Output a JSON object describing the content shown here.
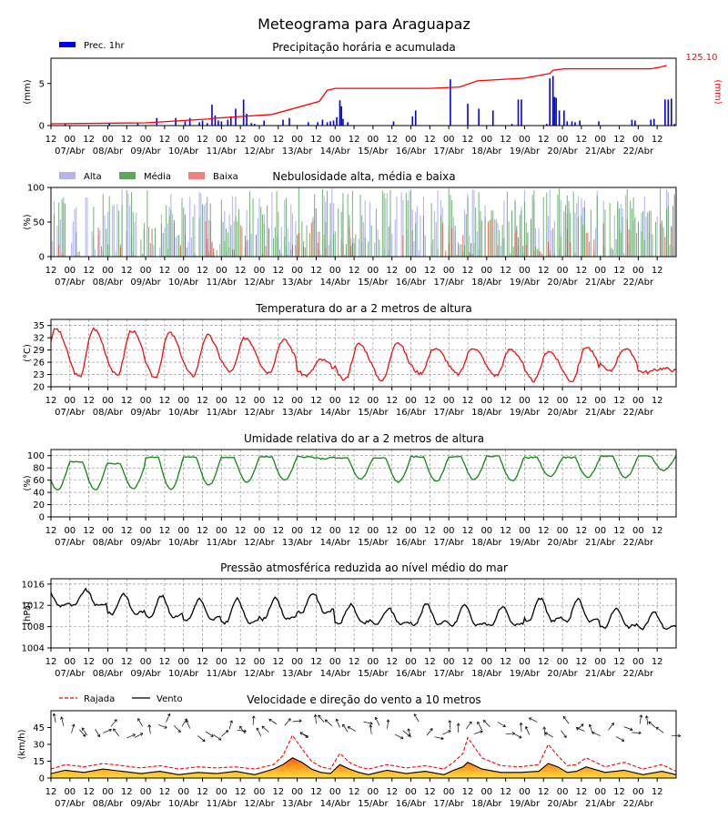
{
  "title": "Meteograma para Araguapaz",
  "x_axis": {
    "hour_labels": [
      "12",
      "00",
      "12",
      "00",
      "12",
      "00",
      "12",
      "00",
      "12",
      "00",
      "12",
      "00",
      "12",
      "00",
      "12",
      "00",
      "12",
      "00",
      "12",
      "00",
      "12",
      "00",
      "12",
      "00",
      "12",
      "00",
      "12",
      "00",
      "12",
      "00",
      "12",
      "00",
      "12"
    ],
    "date_labels": [
      "07/Abr",
      "08/Abr",
      "09/Abr",
      "10/Abr",
      "11/Abr",
      "12/Abr",
      "13/Abr",
      "14/Abr",
      "15/Abr",
      "16/Abr",
      "17/Abr",
      "18/Abr",
      "19/Abr",
      "20/Abr",
      "21/Abr",
      "22/Abr"
    ]
  },
  "colors": {
    "precip_bar": "#0000ee",
    "precip_acc": "#ff0000",
    "cloud_high": "#b4b4f4",
    "cloud_mid": "#5aa85a",
    "cloud_low": "#e03c28",
    "temp": "#ee1111",
    "humidity": "#118811",
    "pressure": "#000000",
    "gust": "#ff0000",
    "wind": "#000000"
  },
  "chart_data": [
    {
      "type": "bar",
      "title": "Precipitação horária e acumulada",
      "ylabel": "(mm)",
      "ylabel_right": "(mm)",
      "yticks": [
        "0",
        "5"
      ],
      "ylim": [
        0,
        8
      ],
      "accum_final_label": "125.10",
      "series": [
        {
          "name": "Prec. 1hr",
          "x_hours": [
            9,
            37,
            55,
            67,
            79,
            85,
            88,
            94,
            96,
            99,
            102,
            104,
            106,
            108,
            112,
            114,
            117,
            122,
            124,
            127,
            129,
            135,
            147,
            151,
            163,
            169,
            172,
            175,
            177,
            179,
            181,
            183,
            184,
            185,
            188,
            217,
            229,
            231,
            253,
            264,
            271,
            280,
            292,
            296,
            298,
            314,
            316,
            318,
            319,
            320,
            322,
            325,
            327,
            330,
            332,
            335,
            347,
            368,
            370,
            380,
            382,
            389,
            391,
            393,
            395
          ],
          "values": [
            0.2,
            0.3,
            0.3,
            0.9,
            0.9,
            0.5,
            0.9,
            0.4,
            0.6,
            0.3,
            2.5,
            1.2,
            0.6,
            0.5,
            0.7,
            1.1,
            2.0,
            3.1,
            1.4,
            0.3,
            0.2,
            0.6,
            0.7,
            0.9,
            0.4,
            0.4,
            0.7,
            0.4,
            0.5,
            0.6,
            1.0,
            3.0,
            2.3,
            0.8,
            0.4,
            0.5,
            1.1,
            1.8,
            5.5,
            2.6,
            2.0,
            1.8,
            0.2,
            3.1,
            3.1,
            0.2,
            5.6,
            5.9,
            3.4,
            3.3,
            1.8,
            1.8,
            0.5,
            0.5,
            0.4,
            0.6,
            0.5,
            0.7,
            0.6,
            0.7,
            0.8,
            3.1,
            3.1,
            3.2,
            0.2
          ]
        },
        {
          "name": "Precipitação acumulada",
          "x_hours": [
            0,
            60,
            99,
            104,
            140,
            170,
            175,
            180,
            240,
            259,
            270,
            290,
            300,
            316,
            318,
            325,
            340,
            360,
            380,
            385,
            390
          ],
          "values": [
            0,
            2,
            10,
            12,
            20,
            48,
            72,
            76,
            76,
            79,
            92,
            96,
            98,
            108,
            115,
            118,
            118,
            118,
            118,
            121,
            125.1
          ]
        }
      ]
    },
    {
      "type": "bar",
      "title": "Nebulosidade alta, média e baixa",
      "ylabel": "(%)",
      "yticks": [
        "0",
        "50",
        "100"
      ],
      "ylim": [
        0,
        100
      ],
      "series": [
        {
          "name": "Alta",
          "values_desc": "0–100% variable"
        },
        {
          "name": "Média",
          "values_desc": "0–100% variable"
        },
        {
          "name": "Baixa",
          "values_desc": "0–60% variable"
        }
      ]
    },
    {
      "type": "line",
      "title": "Temperatura do ar a 2 metros de altura",
      "ylabel": "(°C)",
      "yticks": [
        "20",
        "23",
        "26",
        "29",
        "32",
        "35"
      ],
      "ylim": [
        20,
        36.5
      ],
      "daily_min": [
        22.4,
        22.8,
        22.3,
        22.7,
        23.7,
        23.5,
        22.8,
        21.7,
        21.6,
        23.3,
        23.1,
        22.8,
        21.5,
        21.4,
        23.8,
        23.6
      ],
      "daily_max": [
        34.2,
        33.8,
        33.2,
        32.6,
        32.0,
        31.5,
        26.6,
        30.5,
        31.0,
        29.5,
        29.6,
        29.2,
        28.8,
        29.8,
        29.3,
        24.5
      ]
    },
    {
      "type": "line",
      "title": "Umidade relativa do ar a 2 metros de altura",
      "ylabel": "(%)",
      "yticks": [
        "0",
        "20",
        "40",
        "60",
        "80",
        "100"
      ],
      "ylim": [
        0,
        110
      ],
      "daily_min": [
        44,
        46,
        45,
        52,
        57,
        60,
        95,
        62,
        57,
        58,
        61,
        59,
        66,
        65,
        64,
        76
      ],
      "daily_max": [
        90,
        87,
        97,
        98,
        97,
        98,
        98,
        96,
        96,
        98,
        98,
        99,
        97,
        97,
        99,
        99
      ]
    },
    {
      "type": "line",
      "title": "Pressão atmosférica reduzida ao nível médio do mar",
      "ylabel": "(hPa)",
      "yticks": [
        "1004",
        "1008",
        "1012",
        "1016"
      ],
      "ylim": [
        1004,
        1017
      ],
      "daily_high": [
        1014.9,
        1014.2,
        1013.8,
        1013.2,
        1013.2,
        1013.3,
        1014.3,
        1012.1,
        1011.4,
        1012.3,
        1012.1,
        1011.6,
        1013.3,
        1013.1,
        1011.4,
        1010.7
      ],
      "daily_low": [
        1010.9,
        1009.1,
        1008.5,
        1007.9,
        1007.2,
        1008.1,
        1009.4,
        1007.4,
        1007.5,
        1007.1,
        1006.9,
        1007.1,
        1007.7,
        1007.5,
        1006.7,
        1006.6
      ]
    },
    {
      "type": "line",
      "title": "Velocidade e direção do vento a 10 metros",
      "ylabel": "(km/h)",
      "yticks": [
        "0",
        "15",
        "30",
        "45"
      ],
      "ylim": [
        0,
        60
      ],
      "series": [
        {
          "name": "Rajada",
          "x_hours": [
            0,
            9,
            21,
            33,
            45,
            57,
            69,
            81,
            93,
            105,
            117,
            129,
            141,
            147,
            153,
            159,
            165,
            171,
            177,
            183,
            189,
            195,
            201,
            207,
            213,
            225,
            237,
            249,
            255,
            261,
            264,
            273,
            285,
            297,
            309,
            315,
            321,
            327,
            333,
            339,
            351,
            363,
            375,
            387,
            396
          ],
          "values": [
            8,
            12,
            10,
            13,
            11,
            9,
            11,
            8,
            10,
            9,
            10,
            8,
            12,
            20,
            38,
            26,
            15,
            10,
            8,
            22,
            14,
            10,
            8,
            10,
            12,
            9,
            11,
            8,
            14,
            22,
            36,
            18,
            11,
            10,
            12,
            30,
            20,
            11,
            12,
            18,
            10,
            14,
            8,
            12,
            6
          ]
        },
        {
          "name": "Vento",
          "x_hours": [
            0,
            9,
            21,
            33,
            45,
            57,
            69,
            81,
            93,
            105,
            117,
            129,
            141,
            147,
            153,
            159,
            165,
            171,
            177,
            183,
            189,
            195,
            201,
            207,
            213,
            225,
            237,
            249,
            255,
            261,
            264,
            273,
            285,
            297,
            309,
            315,
            321,
            327,
            333,
            339,
            351,
            363,
            375,
            387,
            396
          ],
          "values": [
            4,
            7,
            5,
            8,
            6,
            4,
            6,
            3,
            5,
            4,
            6,
            3,
            8,
            12,
            18,
            14,
            8,
            5,
            4,
            12,
            8,
            5,
            3,
            5,
            7,
            4,
            6,
            3,
            7,
            10,
            14,
            8,
            5,
            5,
            6,
            13,
            10,
            5,
            6,
            10,
            5,
            7,
            3,
            6,
            3
          ]
        }
      ]
    }
  ]
}
